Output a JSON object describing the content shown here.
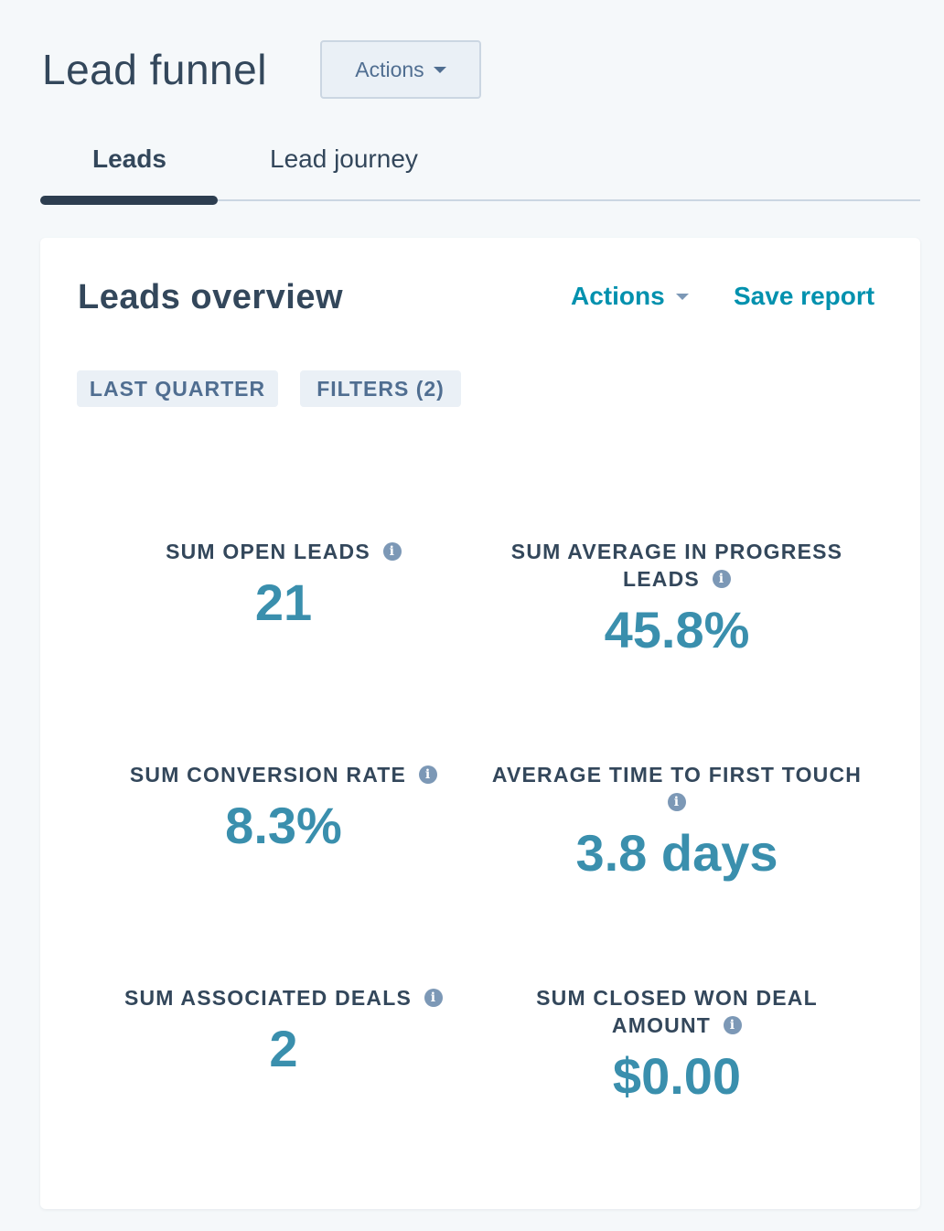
{
  "header": {
    "title": "Lead funnel",
    "actions_label": "Actions"
  },
  "tabs": [
    {
      "label": "Leads",
      "active": true
    },
    {
      "label": "Lead journey",
      "active": false
    }
  ],
  "card": {
    "title": "Leads overview",
    "actions_label": "Actions",
    "save_label": "Save report",
    "chips": {
      "date_range": "LAST QUARTER",
      "filters": "FILTERS (2)"
    },
    "metrics": [
      {
        "label": "SUM OPEN LEADS",
        "value": "21"
      },
      {
        "label_line1": "SUM AVERAGE IN PROGRESS",
        "label_line2": "LEADS",
        "value": "45.8%"
      },
      {
        "label": "SUM CONVERSION RATE",
        "value": "8.3%"
      },
      {
        "label": "AVERAGE TIME TO FIRST TOUCH",
        "value": "3.8 days"
      },
      {
        "label": "SUM ASSOCIATED DEALS",
        "value": "2"
      },
      {
        "label_line1": "SUM CLOSED WON DEAL",
        "label_line2": "AMOUNT",
        "value": "$0.00"
      }
    ]
  },
  "colors": {
    "accent": "#0091ae",
    "metric_value": "#3a8fad",
    "text": "#33475b",
    "info_icon": "#7c98b6"
  },
  "icons": {
    "info": "info-icon",
    "caret": "caret-down-icon"
  }
}
